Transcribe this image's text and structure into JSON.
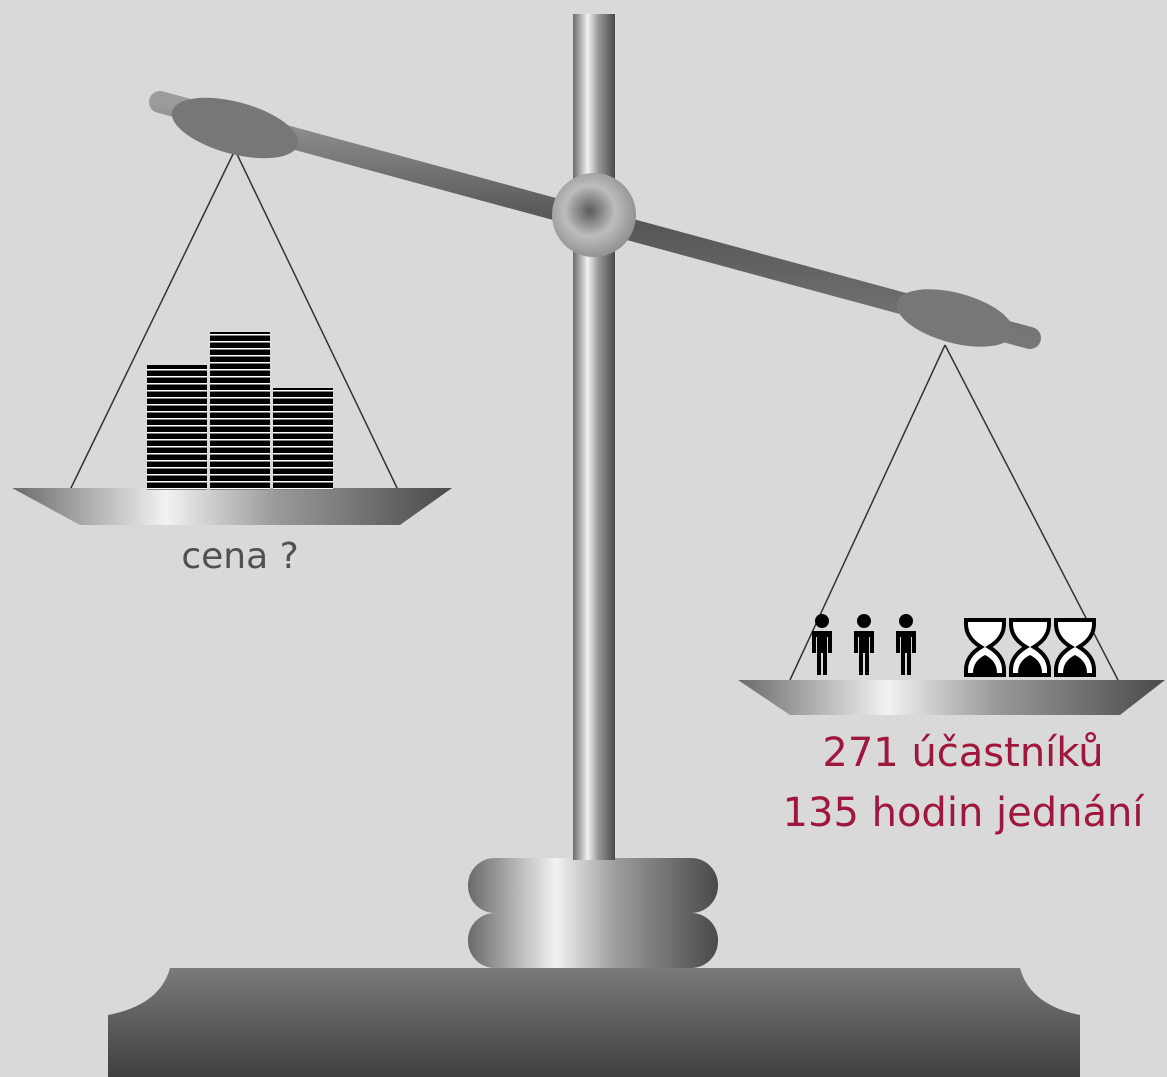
{
  "left_pan": {
    "label": "cena ?"
  },
  "right_pan": {
    "lines": [
      "271 účastníků",
      "135 hodin jednání"
    ]
  }
}
